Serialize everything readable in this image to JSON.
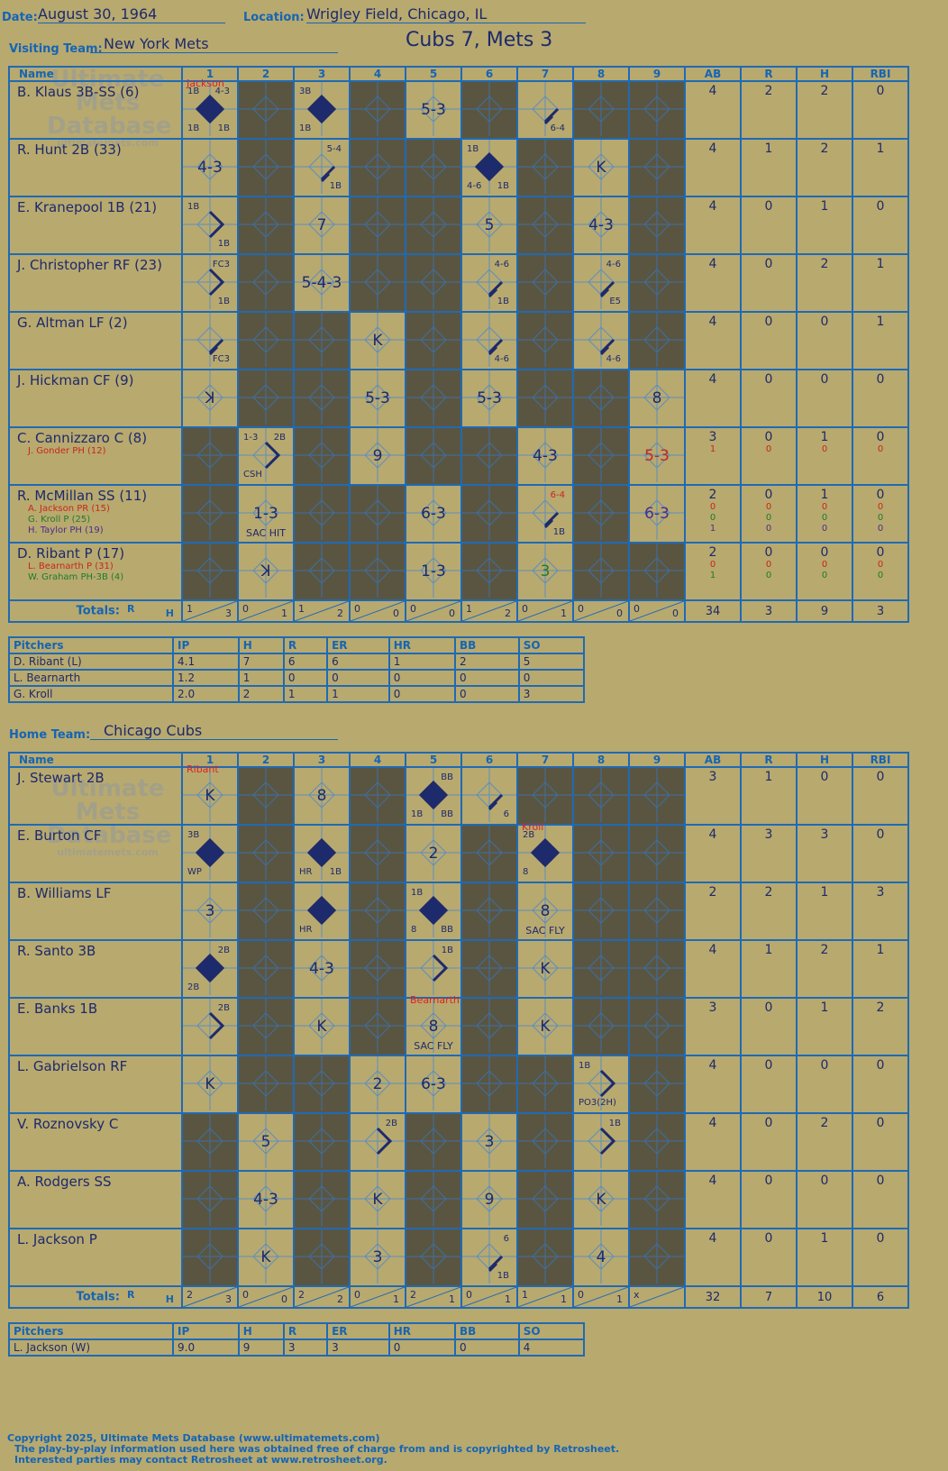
{
  "header": {
    "date_label": "Date:",
    "date": "August 30, 1964",
    "location_label": "Location:",
    "location": "Wrigley Field, Chicago, IL",
    "visiting_label": "Visiting Team:",
    "visiting_team": "New York Mets",
    "home_label": "Home Team:",
    "home_team": "Chicago Cubs",
    "result": "Cubs 7, Mets 3"
  },
  "columns": {
    "name": "Name",
    "innings": [
      "1",
      "2",
      "3",
      "4",
      "5",
      "6",
      "7",
      "8",
      "9"
    ],
    "stats": [
      "AB",
      "R",
      "H",
      "RBI"
    ],
    "totals": "Totals:",
    "r": "R",
    "h": "H"
  },
  "logo": {
    "line1": "Ultimate",
    "line2": "Mets",
    "line3": "Database",
    "url": "ultimatemets.com"
  },
  "visitors": {
    "rows": [
      {
        "name": "B. Klaus 3B-SS (6)",
        "subs": [],
        "stats": [
          [
            "4"
          ],
          [
            "2"
          ],
          [
            "2"
          ],
          [
            "0"
          ]
        ]
      },
      {
        "name": "R. Hunt 2B (33)",
        "subs": [],
        "stats": [
          [
            "4"
          ],
          [
            "1"
          ],
          [
            "2"
          ],
          [
            "1"
          ]
        ]
      },
      {
        "name": "E. Kranepool 1B (21)",
        "subs": [],
        "stats": [
          [
            "4"
          ],
          [
            "0"
          ],
          [
            "1"
          ],
          [
            "0"
          ]
        ]
      },
      {
        "name": "J. Christopher RF (23)",
        "subs": [],
        "stats": [
          [
            "4"
          ],
          [
            "0"
          ],
          [
            "2"
          ],
          [
            "1"
          ]
        ]
      },
      {
        "name": "G. Altman LF (2)",
        "subs": [],
        "stats": [
          [
            "4"
          ],
          [
            "0"
          ],
          [
            "0"
          ],
          [
            "1"
          ]
        ]
      },
      {
        "name": "J. Hickman CF (9)",
        "subs": [],
        "stats": [
          [
            "4"
          ],
          [
            "0"
          ],
          [
            "0"
          ],
          [
            "0"
          ]
        ]
      },
      {
        "name": "C. Cannizzaro C (8)",
        "subs": [
          {
            "t": "J. Gonder PH (12)",
            "c": "red"
          }
        ],
        "stats": [
          [
            "3",
            "1"
          ],
          [
            "0",
            "0"
          ],
          [
            "1",
            "0"
          ],
          [
            "0",
            "0"
          ]
        ]
      },
      {
        "name": "R. McMillan SS (11)",
        "subs": [
          {
            "t": "A. Jackson PR (15)",
            "c": "red"
          },
          {
            "t": "G. Kroll P (25)",
            "c": "green"
          },
          {
            "t": "H. Taylor PH (19)",
            "c": "purple"
          }
        ],
        "stats": [
          [
            "2",
            "0",
            "0",
            "1"
          ],
          [
            "0",
            "0",
            "0",
            "0"
          ],
          [
            "1",
            "0",
            "0",
            "0"
          ],
          [
            "0",
            "0",
            "0",
            "0"
          ]
        ]
      },
      {
        "name": "D. Ribant P (17)",
        "subs": [
          {
            "t": "L. Bearnarth P (31)",
            "c": "red"
          },
          {
            "t": "W. Graham PH-3B (4)",
            "c": "green"
          }
        ],
        "stats": [
          [
            "2",
            "0",
            "1"
          ],
          [
            "0",
            "0",
            "0"
          ],
          [
            "0",
            "0",
            "0"
          ],
          [
            "0",
            "0",
            "0"
          ]
        ]
      }
    ],
    "cells": [
      [
        {
          "tl": "1B",
          "tr": "4-3",
          "bl": "1B",
          "br": "1B",
          "run": 1,
          "top": "Jackson"
        },
        {
          "dark": 1
        },
        {
          "tl": "3B",
          "bl": "1B",
          "run": 1
        },
        {
          "dark": 1
        },
        {
          "res": "5-3"
        },
        {
          "dark": 1
        },
        {
          "br": "6-4",
          "path": "r"
        },
        {
          "dark": 1
        },
        {
          "dark": 1
        }
      ],
      [
        {
          "res": "4-3"
        },
        {
          "dark": 1
        },
        {
          "tr": "5-4",
          "br": "1B",
          "path": "r"
        },
        {
          "dark": 1
        },
        {
          "dark": 1
        },
        {
          "tl": "1B",
          "bl": "4-6",
          "br": "1B",
          "run": 1
        },
        {
          "dark": 1
        },
        {
          "res": "K"
        },
        {
          "dark": 1
        }
      ],
      [
        {
          "tl": "1B",
          "br": "1B",
          "path": "b"
        },
        {
          "dark": 1
        },
        {
          "res": "7"
        },
        {
          "dark": 1
        },
        {
          "dark": 1
        },
        {
          "res": "5"
        },
        {
          "dark": 1
        },
        {
          "res": "4-3"
        },
        {
          "dark": 1
        }
      ],
      [
        {
          "tr": "FC3",
          "br": "1B",
          "path": "b"
        },
        {
          "dark": 1
        },
        {
          "res": "5-4-3"
        },
        {
          "dark": 1
        },
        {
          "dark": 1
        },
        {
          "tr": "4-6",
          "br": "1B",
          "path": "r"
        },
        {
          "dark": 1
        },
        {
          "tr": "4-6",
          "br": "E5",
          "path": "r"
        },
        {
          "dark": 1
        }
      ],
      [
        {
          "br": "FC3",
          "path": "r"
        },
        {
          "dark": 1
        },
        {
          "dark": 1
        },
        {
          "res": "K"
        },
        {
          "dark": 1
        },
        {
          "br": "4-6",
          "path": "r"
        },
        {
          "dark": 1
        },
        {
          "br": "4-6",
          "path": "r"
        },
        {
          "dark": 1
        }
      ],
      [
        {
          "res": "ꓘ"
        },
        {
          "dark": 1
        },
        {
          "dark": 1
        },
        {
          "res": "5-3"
        },
        {
          "dark": 1
        },
        {
          "res": "5-3"
        },
        {
          "dark": 1
        },
        {
          "dark": 1
        },
        {
          "res": "8"
        }
      ],
      [
        {
          "dark": 1
        },
        {
          "tl": "1-3",
          "tr": "2B",
          "bl": "CSH",
          "path": "b"
        },
        {
          "dark": 1
        },
        {
          "res": "9"
        },
        {
          "dark": 1
        },
        {
          "dark": 1
        },
        {
          "res": "4-3"
        },
        {
          "dark": 1
        },
        {
          "res": "5-3",
          "cls": "red"
        }
      ],
      [
        {
          "dark": 1
        },
        {
          "res": "1-3",
          "bottom": "SAC HIT"
        },
        {
          "dark": 1
        },
        {
          "dark": 1
        },
        {
          "res": "6-3"
        },
        {
          "dark": 1
        },
        {
          "tr": "6-4",
          "br": "1B",
          "path": "r",
          "trc": "red"
        },
        {
          "dark": 1
        },
        {
          "res": "6-3",
          "cls": "purple"
        }
      ],
      [
        {
          "dark": 1
        },
        {
          "res": "ꓘ"
        },
        {
          "dark": 1
        },
        {
          "dark": 1
        },
        {
          "res": "1-3"
        },
        {
          "dark": 1
        },
        {
          "res": "3",
          "cls": "green"
        },
        {
          "dark": 1
        },
        {
          "dark": 1
        }
      ]
    ],
    "totals": [
      [
        "1",
        "3"
      ],
      [
        "0",
        "1"
      ],
      [
        "1",
        "2"
      ],
      [
        "0",
        "0"
      ],
      [
        "0",
        "0"
      ],
      [
        "1",
        "2"
      ],
      [
        "0",
        "1"
      ],
      [
        "0",
        "0"
      ],
      [
        "0",
        "0"
      ]
    ],
    "stat_totals": [
      "34",
      "3",
      "9",
      "3"
    ],
    "pitchers": {
      "headers": [
        "Pitchers",
        "IP",
        "H",
        "R",
        "ER",
        "HR",
        "BB",
        "SO"
      ],
      "rows": [
        [
          "D. Ribant (L)",
          "4.1",
          "7",
          "6",
          "6",
          "1",
          "2",
          "5"
        ],
        [
          "L. Bearnarth",
          "1.2",
          "1",
          "0",
          "0",
          "0",
          "0",
          "0"
        ],
        [
          "G. Kroll",
          "2.0",
          "2",
          "1",
          "1",
          "0",
          "0",
          "3"
        ]
      ]
    }
  },
  "home": {
    "rows": [
      {
        "name": "J. Stewart 2B",
        "subs": [],
        "stats": [
          [
            "3"
          ],
          [
            "1"
          ],
          [
            "0"
          ],
          [
            "0"
          ]
        ]
      },
      {
        "name": "E. Burton CF",
        "subs": [],
        "stats": [
          [
            "4"
          ],
          [
            "3"
          ],
          [
            "3"
          ],
          [
            "0"
          ]
        ]
      },
      {
        "name": "B. Williams LF",
        "subs": [],
        "stats": [
          [
            "2"
          ],
          [
            "2"
          ],
          [
            "1"
          ],
          [
            "3"
          ]
        ]
      },
      {
        "name": "R. Santo 3B",
        "subs": [],
        "stats": [
          [
            "4"
          ],
          [
            "1"
          ],
          [
            "2"
          ],
          [
            "1"
          ]
        ]
      },
      {
        "name": "E. Banks 1B",
        "subs": [],
        "stats": [
          [
            "3"
          ],
          [
            "0"
          ],
          [
            "1"
          ],
          [
            "2"
          ]
        ]
      },
      {
        "name": "L. Gabrielson RF",
        "subs": [],
        "stats": [
          [
            "4"
          ],
          [
            "0"
          ],
          [
            "0"
          ],
          [
            "0"
          ]
        ]
      },
      {
        "name": "V. Roznovsky C",
        "subs": [],
        "stats": [
          [
            "4"
          ],
          [
            "0"
          ],
          [
            "2"
          ],
          [
            "0"
          ]
        ]
      },
      {
        "name": "A. Rodgers SS",
        "subs": [],
        "stats": [
          [
            "4"
          ],
          [
            "0"
          ],
          [
            "0"
          ],
          [
            "0"
          ]
        ]
      },
      {
        "name": "L. Jackson P",
        "subs": [],
        "stats": [
          [
            "4"
          ],
          [
            "0"
          ],
          [
            "1"
          ],
          [
            "0"
          ]
        ]
      }
    ],
    "cells": [
      [
        {
          "res": "K",
          "top": "Ribant"
        },
        {
          "dark": 1
        },
        {
          "res": "8"
        },
        {
          "dark": 1
        },
        {
          "tr": "BB",
          "bl": "1B",
          "br": "BB",
          "run": 1
        },
        {
          "br": "6",
          "path": "r"
        },
        {
          "dark": 1
        },
        {
          "dark": 1
        },
        {
          "dark": 1
        }
      ],
      [
        {
          "tl": "3B",
          "bl": "WP",
          "run": 1
        },
        {
          "dark": 1
        },
        {
          "bl": "HR",
          "br": "1B",
          "run": 1
        },
        {
          "dark": 1
        },
        {
          "res": "2"
        },
        {
          "dark": 1
        },
        {
          "tl": "2B",
          "bl": "8",
          "run": 1,
          "top": "Kroll"
        },
        {
          "dark": 1
        },
        {
          "dark": 1
        }
      ],
      [
        {
          "res": "3"
        },
        {
          "dark": 1
        },
        {
          "bl": "HR",
          "run": 1
        },
        {
          "dark": 1
        },
        {
          "tl": "1B",
          "bl": "8",
          "br": "BB",
          "run": 1
        },
        {
          "dark": 1
        },
        {
          "res": "8",
          "bottom": "SAC FLY"
        },
        {
          "dark": 1
        },
        {
          "dark": 1
        }
      ],
      [
        {
          "tr": "2B",
          "bl": "2B",
          "run": 1
        },
        {
          "dark": 1
        },
        {
          "res": "4-3"
        },
        {
          "dark": 1
        },
        {
          "tr": "1B",
          "path": "b"
        },
        {
          "dark": 1
        },
        {
          "res": "K"
        },
        {
          "dark": 1
        },
        {
          "dark": 1
        }
      ],
      [
        {
          "tr": "2B",
          "path": "b"
        },
        {
          "dark": 1
        },
        {
          "res": "K"
        },
        {
          "dark": 1
        },
        {
          "res": "8",
          "bottom": "SAC FLY",
          "top": "Bearnarth"
        },
        {
          "dark": 1
        },
        {
          "res": "K"
        },
        {
          "dark": 1
        },
        {
          "dark": 1
        }
      ],
      [
        {
          "res": "K"
        },
        {
          "dark": 1
        },
        {
          "dark": 1
        },
        {
          "res": "2"
        },
        {
          "res": "6-3"
        },
        {
          "dark": 1
        },
        {
          "dark": 1
        },
        {
          "tl": "1B",
          "bl": "PO3(2H)",
          "path": "b"
        },
        {
          "dark": 1
        }
      ],
      [
        {
          "dark": 1
        },
        {
          "res": "5"
        },
        {
          "dark": 1
        },
        {
          "tr": "2B",
          "path": "b"
        },
        {
          "dark": 1
        },
        {
          "res": "3"
        },
        {
          "dark": 1
        },
        {
          "tr": "1B",
          "path": "b"
        },
        {
          "dark": 1
        }
      ],
      [
        {
          "dark": 1
        },
        {
          "res": "4-3"
        },
        {
          "dark": 1
        },
        {
          "res": "K"
        },
        {
          "dark": 1
        },
        {
          "res": "9"
        },
        {
          "dark": 1
        },
        {
          "res": "K"
        },
        {
          "dark": 1
        }
      ],
      [
        {
          "dark": 1
        },
        {
          "res": "K"
        },
        {
          "dark": 1
        },
        {
          "res": "3"
        },
        {
          "dark": 1
        },
        {
          "tr": "6",
          "br": "1B",
          "path": "r"
        },
        {
          "dark": 1
        },
        {
          "res": "4"
        },
        {
          "dark": 1
        }
      ]
    ],
    "totals": [
      [
        "2",
        "3"
      ],
      [
        "0",
        "0"
      ],
      [
        "2",
        "2"
      ],
      [
        "0",
        "1"
      ],
      [
        "2",
        "1"
      ],
      [
        "0",
        "1"
      ],
      [
        "1",
        "1"
      ],
      [
        "0",
        "1"
      ],
      [
        "x",
        ""
      ]
    ],
    "stat_totals": [
      "32",
      "7",
      "10",
      "6"
    ],
    "pitchers": {
      "headers": [
        "Pitchers",
        "IP",
        "H",
        "R",
        "ER",
        "HR",
        "BB",
        "SO"
      ],
      "rows": [
        [
          "L. Jackson (W)",
          "9.0",
          "9",
          "3",
          "3",
          "0",
          "0",
          "4"
        ]
      ]
    }
  },
  "footer": {
    "line1": "Copyright 2025, Ultimate Mets Database (www.ultimatemets.com)",
    "line2": "The play-by-play information used here was obtained free of charge from and is copyrighted by Retrosheet.",
    "line3": "Interested parties may contact Retrosheet at www.retrosheet.org."
  }
}
